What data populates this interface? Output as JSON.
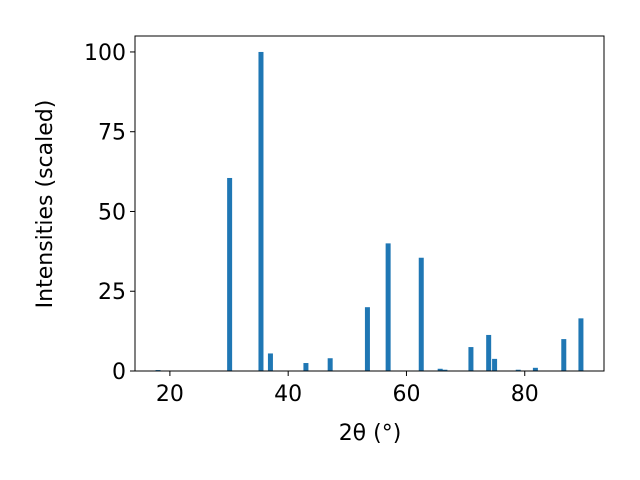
{
  "chart_data": {
    "type": "bar",
    "xlabel": "2θ (°)",
    "ylabel": "Intensities (scaled)",
    "x": [
      18.0,
      30.1,
      35.4,
      37.0,
      43.0,
      47.1,
      53.4,
      56.9,
      62.5,
      65.7,
      66.5,
      70.9,
      73.9,
      74.9,
      78.9,
      81.8,
      86.6,
      89.5
    ],
    "values": [
      0.3,
      60.5,
      100,
      5.5,
      2.5,
      4,
      20,
      40,
      35.5,
      0.7,
      0.4,
      7.5,
      11.3,
      3.8,
      0.4,
      1.0,
      10,
      16.5
    ],
    "color": "#1f77b4",
    "xlim": [
      14.1,
      93.4
    ],
    "ylim": [
      0,
      105
    ],
    "xticks": [
      20,
      40,
      60,
      80
    ],
    "yticks": [
      0,
      25,
      50,
      75,
      100
    ],
    "grid": false
  }
}
